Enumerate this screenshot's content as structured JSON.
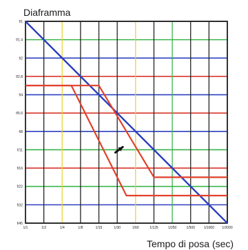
{
  "chart_data": {
    "type": "line",
    "ylabel": "Diaframma",
    "xlabel": "Tempo di posa (sec)",
    "x_ticks": [
      "1/1",
      "1/2",
      "1/4",
      "1/8",
      "1/15",
      "1/30",
      "1/60",
      "1/125",
      "1/250",
      "1/500",
      "1/1000",
      "1/2000"
    ],
    "y_ticks": [
      "f/1",
      "f/1.4",
      "f/2",
      "f/2.8",
      "f/4",
      "f/5.6",
      "f/8",
      "f/11",
      "f/16",
      "f/22",
      "f/32",
      "f/45"
    ],
    "y_tick_colors": [
      "#222222",
      "#38b44a",
      "#2a3fbf",
      "#d8342a",
      "#2a3fbf",
      "#d8342a",
      "#2a3fbf",
      "#38b44a",
      "#d8342a",
      "#38b44a",
      "#2a3fbf",
      "#222222"
    ],
    "x_line_colors": [
      "#38b44a",
      "#222222",
      "#e8d43a",
      "#222222",
      "#222222",
      "#222222",
      "#e8d43a",
      "#222222",
      "#38b44a",
      "#222222",
      "#222222",
      "#222222"
    ],
    "grid": true,
    "series": [
      {
        "color": "#2a3fbf",
        "points": [
          [
            0,
            0
          ],
          [
            11,
            11
          ]
        ]
      },
      {
        "color": "#e0402a",
        "points": [
          [
            0,
            3.5
          ],
          [
            2.5,
            3.5
          ],
          [
            5.5,
            9.5
          ],
          [
            11,
            9.5
          ]
        ]
      },
      {
        "color": "#e0402a",
        "points": [
          [
            0,
            3.5
          ],
          [
            4,
            3.5
          ],
          [
            7,
            8.5
          ],
          [
            11,
            8.5
          ]
        ]
      }
    ],
    "annotations": [
      {
        "type": "arrow",
        "color": "#111111",
        "from": [
          4.9,
          7.15
        ],
        "to": [
          5.3,
          6.85
        ]
      }
    ]
  }
}
